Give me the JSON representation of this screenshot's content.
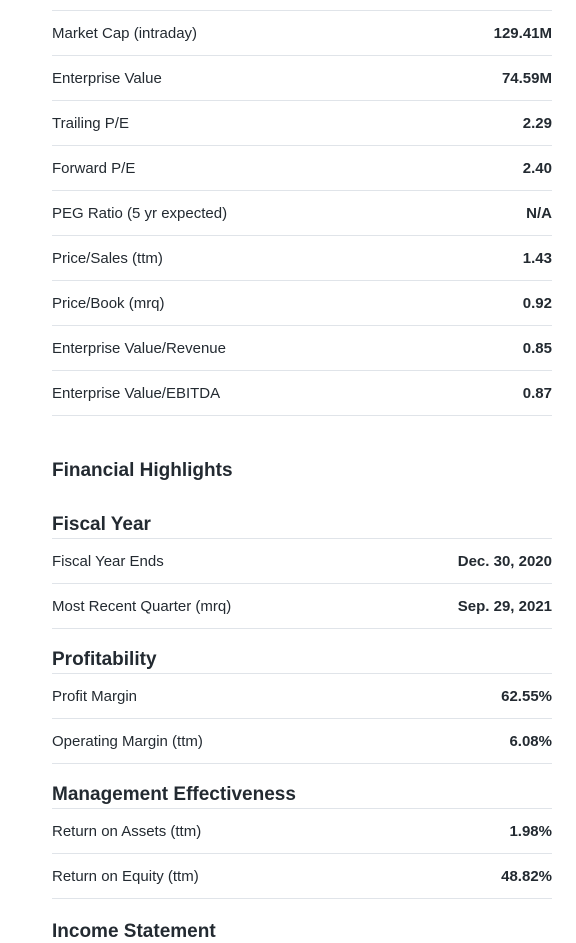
{
  "valuation": [
    {
      "label": "Market Cap (intraday)",
      "value": "129.41M"
    },
    {
      "label": "Enterprise Value",
      "value": "74.59M"
    },
    {
      "label": "Trailing P/E",
      "value": "2.29"
    },
    {
      "label": "Forward P/E",
      "value": "2.40"
    },
    {
      "label": "PEG Ratio (5 yr expected)",
      "value": "N/A"
    },
    {
      "label": "Price/Sales (ttm)",
      "value": "1.43"
    },
    {
      "label": "Price/Book (mrq)",
      "value": "0.92"
    },
    {
      "label": "Enterprise Value/Revenue",
      "value": "0.85"
    },
    {
      "label": "Enterprise Value/EBITDA",
      "value": "0.87"
    }
  ],
  "financial_highlights": {
    "title": "Financial Highlights",
    "fiscal_year": {
      "title": "Fiscal Year",
      "rows": [
        {
          "label": "Fiscal Year Ends",
          "value": "Dec. 30, 2020"
        },
        {
          "label": "Most Recent Quarter (mrq)",
          "value": "Sep. 29, 2021"
        }
      ]
    },
    "profitability": {
      "title": "Profitability",
      "rows": [
        {
          "label": "Profit Margin",
          "value": "62.55%"
        },
        {
          "label": "Operating Margin (ttm)",
          "value": "6.08%"
        }
      ]
    },
    "management_effectiveness": {
      "title": "Management Effectiveness",
      "rows": [
        {
          "label": "Return on Assets (ttm)",
          "value": "1.98%"
        },
        {
          "label": "Return on Equity (ttm)",
          "value": "48.82%"
        }
      ]
    },
    "next_section_title": "Income Statement"
  }
}
